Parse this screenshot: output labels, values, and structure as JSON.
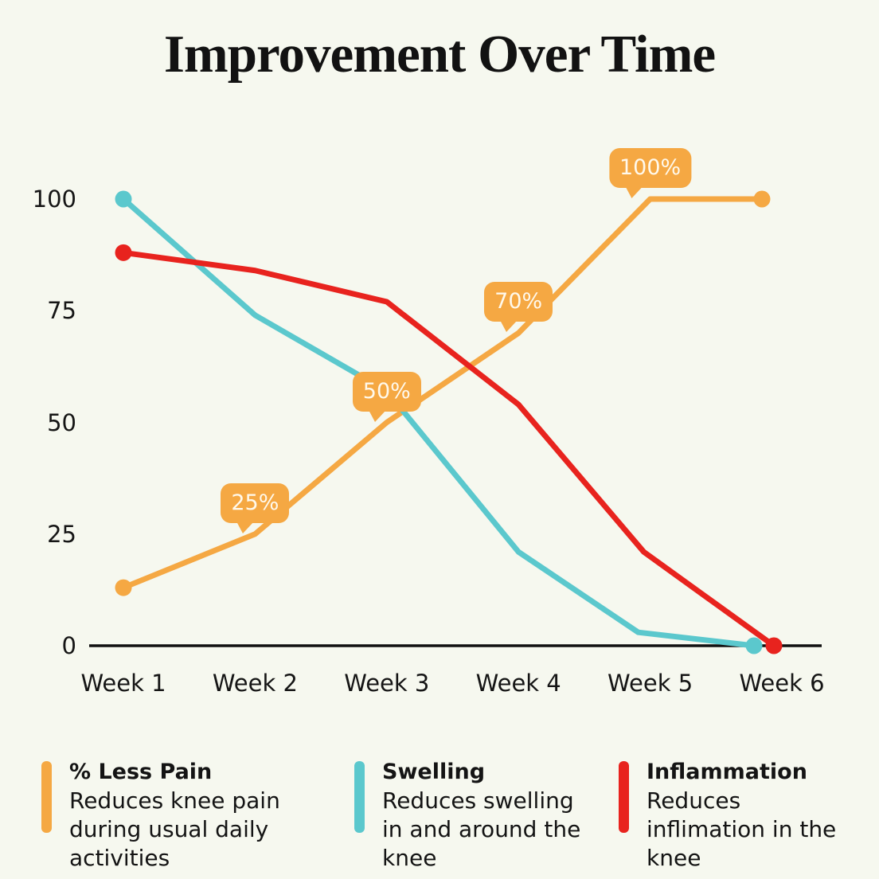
{
  "chart_data": {
    "type": "line",
    "title": "Improvement Over Time",
    "categories": [
      "Week 1",
      "Week 2",
      "Week 3",
      "Week 4",
      "Week 5",
      "Week 6"
    ],
    "xlabel": "",
    "ylabel": "",
    "ylim": [
      0,
      100
    ],
    "y_ticks": [
      100,
      75,
      50,
      25,
      0
    ],
    "grid": false,
    "legend_position": "bottom",
    "background": "#F6F8EF",
    "axis_color": "#111111",
    "label_text_color": "#FFF9EC",
    "series": [
      {
        "name": "% Less Pain",
        "description": "Reduces knee pain during usual daily activities",
        "color": "#F5A843",
        "values": [
          13,
          25,
          50,
          70,
          100,
          100
        ],
        "point_labels": [
          "",
          "25%",
          "50%",
          "70%",
          "100%",
          ""
        ],
        "x_offsets": [
          0,
          0,
          0,
          0,
          0,
          -25
        ]
      },
      {
        "name": "Swelling",
        "description": "Reduces swelling in and around the knee",
        "color": "#5BC8CD",
        "values": [
          100,
          74,
          57,
          21,
          3,
          0
        ],
        "point_labels": [
          "",
          "",
          "",
          "",
          "",
          ""
        ],
        "x_offsets": [
          0,
          0,
          0,
          0,
          -15,
          -35
        ]
      },
      {
        "name": "Inflammation",
        "description": "Reduces inflimation in the knee",
        "color": "#E8231E",
        "values": [
          88,
          84,
          77,
          54,
          21,
          0
        ],
        "point_labels": [
          "",
          "",
          "",
          "",
          "",
          ""
        ],
        "x_offsets": [
          0,
          0,
          0,
          0,
          -8,
          -10
        ]
      }
    ]
  }
}
